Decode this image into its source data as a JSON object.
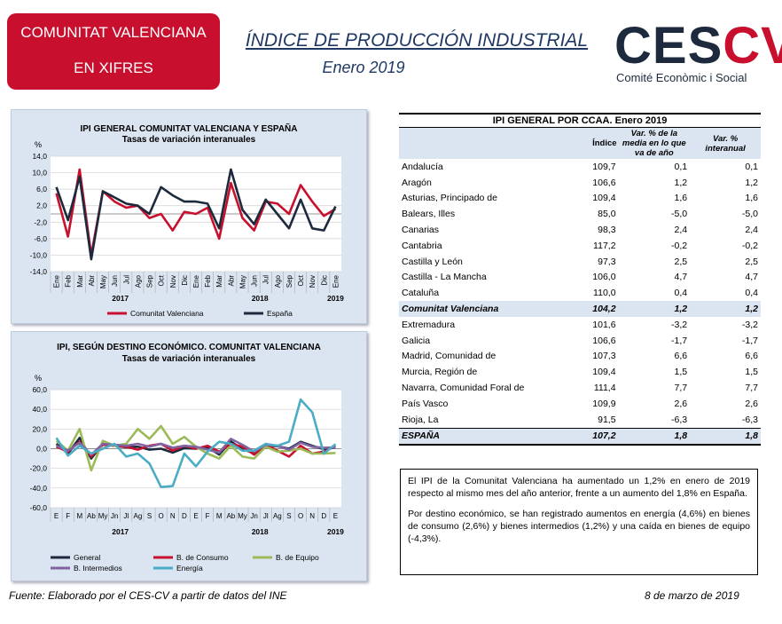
{
  "header": {
    "badge_line1": "COMUNITAT VALENCIANA",
    "badge_line2": "EN XIFRES",
    "title": "ÍNDICE DE PRODUCCIÓN INDUSTRIAL",
    "subtitle": "Enero 2019",
    "logo_main_a": "CES",
    "logo_main_b": "CV",
    "logo_sub": "Comité Econòmic i Social"
  },
  "colors": {
    "brand_red": "#c8102e",
    "navy": "#1d2a3e",
    "panel_bg": "#dbe5f1",
    "series_green": "#9bbb59",
    "series_purple": "#8064a2",
    "series_cyan": "#4bacc6"
  },
  "chart_data": [
    {
      "type": "line",
      "title": "IPI GENERAL COMUNITAT VALENCIANA Y ESPAÑA",
      "subtitle": "Tasas de variación interanuales",
      "ylabel": "%",
      "ylim": [
        -14,
        14
      ],
      "yticks": [
        "14,0",
        "10,0",
        "6,0",
        "2,0",
        "-2,0",
        "-6,0",
        "-10,0",
        "-14,0"
      ],
      "categories": [
        "Ene",
        "Feb",
        "Mar",
        "Abr",
        "May",
        "Jun",
        "Jul",
        "Ago",
        "Sep",
        "Oct",
        "Nov",
        "Dic",
        "Ene",
        "Feb",
        "Mar",
        "Abr",
        "May",
        "Jun",
        "Jul",
        "Ago",
        "Sep",
        "Oct",
        "Nov",
        "Dic",
        "Ene"
      ],
      "year_labels": [
        "2017",
        "2018",
        "2019"
      ],
      "series": [
        {
          "name": "Comunitat Valenciana",
          "color": "#c8102e",
          "values": [
            5.0,
            -5.5,
            10.8,
            -10.0,
            5.5,
            3.0,
            1.5,
            2.0,
            -1.0,
            0.0,
            -4.0,
            0.5,
            0.0,
            1.5,
            -6.0,
            7.5,
            -1.0,
            -4.0,
            3.0,
            2.5,
            0.0,
            7.0,
            3.0,
            -0.5,
            1.2
          ]
        },
        {
          "name": "España",
          "color": "#1d2a3e",
          "values": [
            6.5,
            -1.5,
            9.0,
            -11.0,
            5.5,
            4.0,
            2.5,
            2.0,
            0.0,
            6.5,
            4.5,
            3.0,
            3.0,
            2.5,
            -3.5,
            10.8,
            1.0,
            -2.5,
            3.5,
            0.0,
            -3.5,
            3.5,
            -3.5,
            -4.0,
            1.8
          ]
        }
      ]
    },
    {
      "type": "line",
      "title": "IPI, SEGÚN DESTINO ECONÓMICO. COMUNITAT VALENCIANA",
      "subtitle": "Tasas de variación interanuales",
      "ylabel": "%",
      "ylim": [
        -60,
        60
      ],
      "yticks": [
        "60,0",
        "40,0",
        "20,0",
        "0,0",
        "-20,0",
        "-40,0",
        "-60,0"
      ],
      "categories": [
        "E",
        "F",
        "M",
        "Ab",
        "My",
        "Jn",
        "Jl",
        "Ag",
        "S",
        "O",
        "N",
        "D",
        "E",
        "F",
        "M",
        "Ab",
        "My",
        "Jn",
        "Jl",
        "Ag",
        "S",
        "O",
        "N",
        "D",
        "E"
      ],
      "year_labels": [
        "2017",
        "2018",
        "2019"
      ],
      "series": [
        {
          "name": "General",
          "color": "#1d2a3e",
          "values": [
            5,
            -5,
            11,
            -10,
            5,
            3,
            1.5,
            2,
            -1,
            0,
            -4,
            0.5,
            0,
            1.5,
            -6,
            7.5,
            -1,
            -4,
            3,
            2.5,
            0,
            7,
            3,
            -0.5,
            1.2
          ]
        },
        {
          "name": "B. de Consumo",
          "color": "#c8102e",
          "values": [
            2,
            -3,
            7,
            -8,
            4,
            3,
            2,
            -1,
            3,
            5,
            -2,
            3,
            0,
            3,
            -3,
            5,
            2,
            -6,
            4,
            -2,
            -8,
            3,
            -5,
            -3,
            2.6
          ]
        },
        {
          "name": "B. de Equipo",
          "color": "#9bbb59",
          "values": [
            8,
            -2,
            20,
            -22,
            8,
            3,
            5,
            20,
            10,
            23,
            5,
            12,
            2,
            -5,
            -10,
            3,
            -8,
            -10,
            2,
            -3,
            -2,
            0,
            -5,
            -5,
            -4.3
          ]
        },
        {
          "name": "B. Intermedios",
          "color": "#8064a2",
          "values": [
            3,
            -2,
            6,
            -6,
            5,
            4,
            3,
            5,
            2,
            5,
            1,
            3,
            2,
            -1,
            -4,
            10,
            4,
            -3,
            4,
            3,
            -1,
            6,
            2,
            1,
            1.2
          ]
        },
        {
          "name": "Energía",
          "color": "#4bacc6",
          "values": [
            11,
            -7,
            3,
            -5,
            0,
            5,
            -8,
            -5,
            -15,
            -39,
            -38,
            -5,
            -18,
            -3,
            7,
            5,
            -2,
            -2,
            5,
            3,
            7,
            50,
            37,
            -5,
            4.6
          ]
        }
      ]
    }
  ],
  "table": {
    "caption": "IPI GENERAL POR CCAA. Enero 2019",
    "headers": [
      "",
      "Índice",
      "Var. % de la media en lo que va de año",
      "Var. % interanual"
    ],
    "rows": [
      [
        "Andalucía",
        "109,7",
        "0,1",
        "0,1"
      ],
      [
        "Aragón",
        "106,6",
        "1,2",
        "1,2"
      ],
      [
        "Asturias, Principado de",
        "109,4",
        "1,6",
        "1,6"
      ],
      [
        "Balears, Illes",
        "85,0",
        "-5,0",
        "-5,0"
      ],
      [
        "Canarias",
        "98,3",
        "2,4",
        "2,4"
      ],
      [
        "Cantabria",
        "117,2",
        "-0,2",
        "-0,2"
      ],
      [
        "Castilla y León",
        "97,3",
        "2,5",
        "2,5"
      ],
      [
        "Castilla - La Mancha",
        "106,0",
        "4,7",
        "4,7"
      ],
      [
        "Cataluña",
        "110,0",
        "0,4",
        "0,4"
      ],
      [
        "Comunitat Valenciana",
        "104,2",
        "1,2",
        "1,2"
      ],
      [
        "Extremadura",
        "101,6",
        "-3,2",
        "-3,2"
      ],
      [
        "Galicia",
        "106,6",
        "-1,7",
        "-1,7"
      ],
      [
        "Madrid, Comunidad de",
        "107,3",
        "6,6",
        "6,6"
      ],
      [
        "Murcia, Región de",
        "109,4",
        "1,5",
        "1,5"
      ],
      [
        "Navarra, Comunidad Foral de",
        "111,4",
        "7,7",
        "7,7"
      ],
      [
        "País Vasco",
        "109,9",
        "2,6",
        "2,6"
      ],
      [
        "Rioja, La",
        "91,5",
        "-6,3",
        "-6,3"
      ],
      [
        "ESPAÑA",
        "107,2",
        "1,8",
        "1,8"
      ]
    ]
  },
  "text": {
    "p1": "El IPI de la Comunitat Valenciana ha aumentado un 1,2% en enero de 2019 respecto al mismo mes del año anterior, frente a un aumento del 1,8% en España.",
    "p2": "Por destino económico, se han registrado aumentos en energía (4,6%) en bienes de consumo (2,6%) y bienes intermedios (1,2%) y una caída en bienes de equipo (-4,3%)."
  },
  "footer": {
    "source": "Fuente: Elaborado por el CES-CV a partir de datos del INE",
    "date": "8 de marzo de 2019"
  }
}
